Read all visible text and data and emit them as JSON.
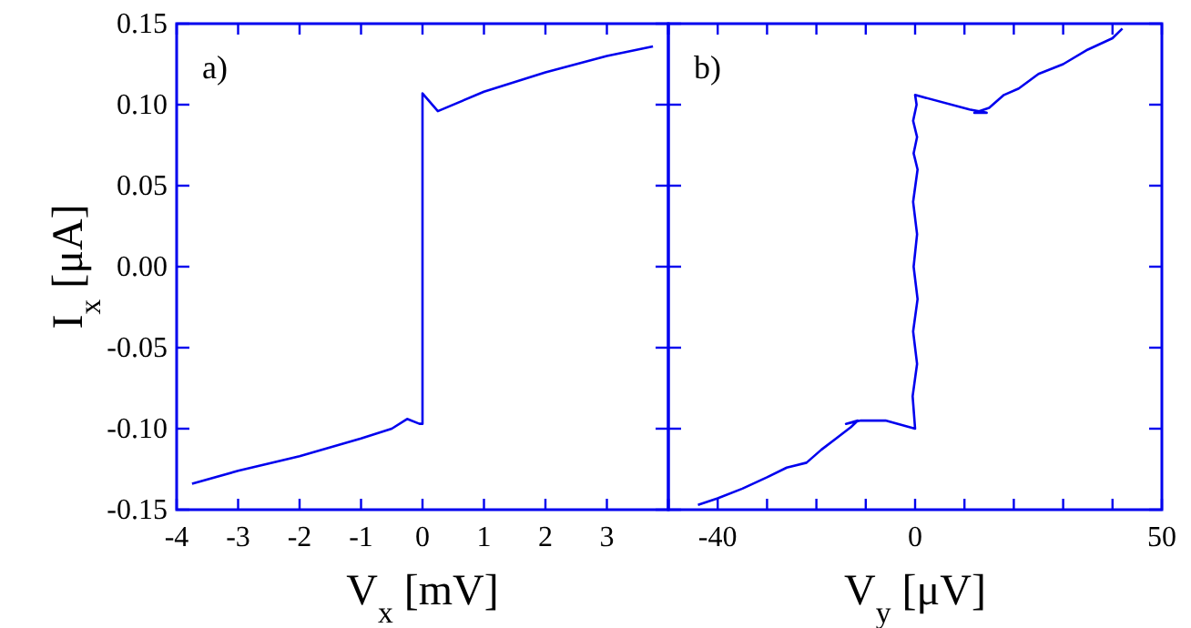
{
  "chart_data": [
    {
      "type": "line",
      "xlabel": "V$_{x}$ [mV]",
      "ylabel": "I$_{x}$ [μA]",
      "annotations": [
        "a)"
      ],
      "xlim": [
        -4,
        4
      ],
      "ylim": [
        -0.15,
        0.15
      ],
      "xticks": [
        -4,
        -3,
        -2,
        -1,
        0,
        1,
        2,
        3,
        {
          "value": 4,
          "label": null
        }
      ],
      "yticks": [
        {
          "value": -0.15,
          "label": "-0.15"
        },
        {
          "value": -0.1,
          "label": "-0.10"
        },
        {
          "value": -0.05,
          "label": "-0.05"
        },
        {
          "value": 0,
          "label": "0.00"
        },
        {
          "value": 0.05,
          "label": "0.05"
        },
        {
          "value": 0.1,
          "label": "0.10"
        },
        {
          "value": 0.15,
          "label": "0.15"
        }
      ],
      "grid": false,
      "marker": "none",
      "line_style": "solid",
      "series": [
        {
          "color": "#0000ee",
          "x": [
            -3.75,
            -3,
            -2,
            -1,
            -0.5,
            -0.25,
            -0.05,
            0,
            0,
            0.25,
            1,
            2,
            3,
            3.75
          ],
          "values": [
            -0.134,
            -0.126,
            -0.117,
            -0.106,
            -0.1,
            -0.094,
            -0.097,
            -0.097,
            0.107,
            0.096,
            0.108,
            0.12,
            0.13,
            0.136
          ]
        }
      ]
    },
    {
      "type": "line",
      "xlabel": "V$_{y}$ [μV]",
      "annotations": [
        "b)"
      ],
      "xlim": [
        -50,
        50
      ],
      "ylim": [
        -0.15,
        0.15
      ],
      "tick_labels": "x",
      "xticks": [
        {
          "value": -50,
          "label": null
        },
        -40,
        {
          "value": -30,
          "label": null
        },
        {
          "value": -20,
          "label": null
        },
        {
          "value": -10,
          "label": null
        },
        0,
        {
          "value": 10,
          "label": null
        },
        {
          "value": 20,
          "label": null
        },
        {
          "value": 30,
          "label": null
        },
        {
          "value": 40,
          "label": null
        },
        50
      ],
      "yticks": [
        {
          "value": -0.15,
          "label": null
        },
        {
          "value": -0.1,
          "label": null
        },
        {
          "value": -0.05,
          "label": null
        },
        {
          "value": 0,
          "label": null
        },
        {
          "value": 0.05,
          "label": null
        },
        {
          "value": 0.1,
          "label": null
        },
        {
          "value": 0.15,
          "label": null
        }
      ],
      "grid": false,
      "marker": "none",
      "line_style": "solid",
      "series": [
        {
          "color": "#0000ee",
          "x": [
            -44,
            -40,
            -35,
            -30,
            -26,
            -22,
            -19,
            -16,
            -13,
            -11.6,
            -14,
            -11,
            -6,
            0,
            -0.5,
            0.4,
            -0.4,
            0.5,
            -0.3,
            0.4,
            -0.4,
            0.5,
            -0.3,
            0.4,
            -0.4,
            0.3,
            0,
            11,
            14.5,
            12,
            15,
            18,
            21,
            25,
            30,
            35,
            40,
            42
          ],
          "values": [
            -0.147,
            -0.143,
            -0.137,
            -0.13,
            -0.124,
            -0.121,
            -0.113,
            -0.106,
            -0.099,
            -0.095,
            -0.097,
            -0.095,
            -0.095,
            -0.1,
            -0.08,
            -0.06,
            -0.04,
            -0.02,
            0,
            0.02,
            0.04,
            0.06,
            0.07,
            0.08,
            0.09,
            0.1,
            0.106,
            0.097,
            0.095,
            0.095,
            0.098,
            0.106,
            0.11,
            0.119,
            0.125,
            0.134,
            0.141,
            0.147
          ]
        }
      ]
    }
  ]
}
